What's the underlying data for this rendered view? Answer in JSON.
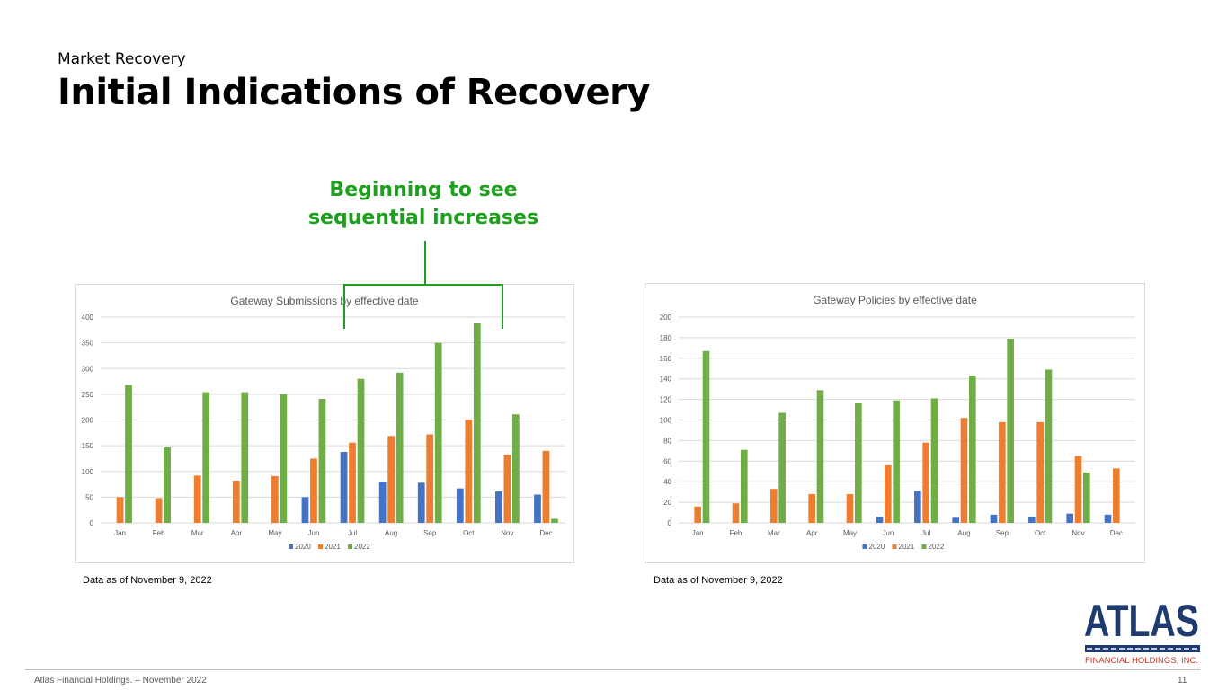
{
  "header": {
    "subtitle": "Market Recovery",
    "title": "Initial Indications of Recovery"
  },
  "callout": {
    "line1": "Beginning to see",
    "line2": "sequential increases"
  },
  "notes": {
    "left": "Data as of November 9, 2022",
    "right": "Data as of November 9, 2022"
  },
  "footer": {
    "text": "Atlas Financial Holdings. – November 2022",
    "page": "11"
  },
  "logo": {
    "name": "ATLAS",
    "sub": "FINANCIAL HOLDINGS, INC."
  },
  "colors": {
    "s2020": "#4472c4",
    "s2021": "#ed7d31",
    "s2022": "#70ad47",
    "callout": "#1ea01e",
    "logo": "#1f3a6e"
  },
  "chart_data": [
    {
      "type": "bar",
      "title": "Gateway Submissions by effective date",
      "categories": [
        "Jan",
        "Feb",
        "Mar",
        "Apr",
        "May",
        "Jun",
        "Jul",
        "Aug",
        "Sep",
        "Oct",
        "Nov",
        "Dec"
      ],
      "ylim": [
        0,
        400
      ],
      "yticks": [
        0,
        50,
        100,
        150,
        200,
        250,
        300,
        350,
        400
      ],
      "series": [
        {
          "name": "2020",
          "values": [
            0,
            0,
            0,
            0,
            0,
            50,
            138,
            80,
            78,
            67,
            61,
            55
          ]
        },
        {
          "name": "2021",
          "values": [
            50,
            48,
            92,
            82,
            91,
            125,
            156,
            169,
            172,
            201,
            133,
            140
          ]
        },
        {
          "name": "2022",
          "values": [
            268,
            147,
            254,
            254,
            250,
            241,
            280,
            292,
            350,
            388,
            211,
            8
          ]
        }
      ]
    },
    {
      "type": "bar",
      "title": "Gateway Policies by effective date",
      "categories": [
        "Jan",
        "Feb",
        "Mar",
        "Apr",
        "May",
        "Jun",
        "Jul",
        "Aug",
        "Sep",
        "Oct",
        "Nov",
        "Dec"
      ],
      "ylim": [
        0,
        200
      ],
      "yticks": [
        0,
        20,
        40,
        60,
        80,
        100,
        120,
        140,
        160,
        180,
        200
      ],
      "series": [
        {
          "name": "2020",
          "values": [
            0,
            0,
            0,
            0,
            0,
            6,
            31,
            5,
            8,
            6,
            9,
            8
          ]
        },
        {
          "name": "2021",
          "values": [
            16,
            19,
            33,
            28,
            28,
            56,
            78,
            102,
            98,
            98,
            65,
            53
          ]
        },
        {
          "name": "2022",
          "values": [
            167,
            71,
            107,
            129,
            117,
            119,
            121,
            143,
            179,
            149,
            49,
            0
          ]
        }
      ]
    }
  ]
}
